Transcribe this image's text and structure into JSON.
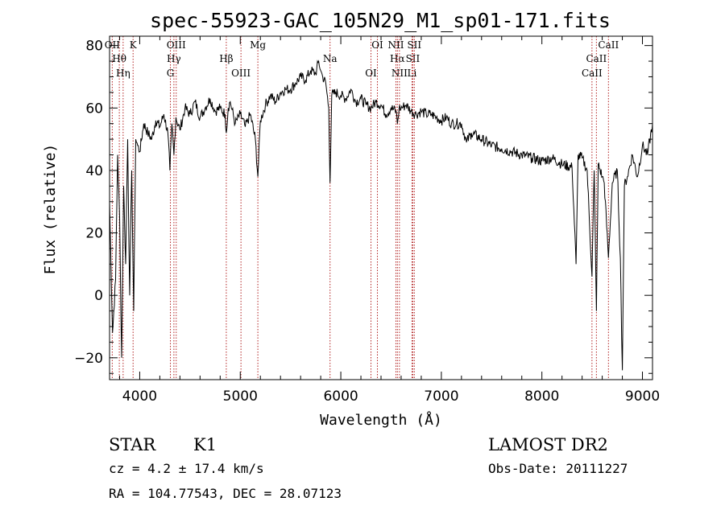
{
  "chart_data": {
    "type": "line",
    "title": "spec-55923-GAC_105N29_M1_sp01-171.fits",
    "xlabel": "Wavelength (Å)",
    "ylabel": "Flux (relative)",
    "xlim": [
      3700,
      9100
    ],
    "ylim": [
      -27,
      83
    ],
    "xticks": [
      "4000",
      "5000",
      "6000",
      "7000",
      "8000",
      "9000"
    ],
    "yticks": [
      "−20",
      "0",
      "20",
      "40",
      "60",
      "80"
    ],
    "grid": false,
    "series": [
      {
        "x": [
          3700,
          3730,
          3760,
          3780,
          3800,
          3820,
          3840,
          3860,
          3880,
          3900,
          3920,
          3940,
          3960,
          3980,
          4000,
          4040,
          4080,
          4120,
          4160,
          4200,
          4240,
          4280,
          4300,
          4320,
          4340,
          4360,
          4400,
          4450,
          4500,
          4550,
          4600,
          4650,
          4700,
          4750,
          4800,
          4850,
          4861,
          4880,
          4900,
          4950,
          5000,
          5050,
          5100,
          5150,
          5175,
          5200,
          5250,
          5300,
          5350,
          5400,
          5450,
          5500,
          5550,
          5600,
          5650,
          5700,
          5750,
          5780,
          5800,
          5820,
          5850,
          5880,
          5893,
          5910,
          5950,
          6000,
          6050,
          6100,
          6150,
          6200,
          6250,
          6300,
          6350,
          6400,
          6450,
          6500,
          6550,
          6563,
          6580,
          6600,
          6650,
          6700,
          6750,
          6800,
          6850,
          6900,
          6950,
          7000,
          7050,
          7100,
          7150,
          7200,
          7250,
          7300,
          7400,
          7500,
          7600,
          7700,
          7800,
          7900,
          8000,
          8100,
          8200,
          8300,
          8340,
          8360,
          8400,
          8450,
          8498,
          8520,
          8542,
          8560,
          8600,
          8620,
          8662,
          8700,
          8750,
          8780,
          8800,
          8820,
          8850,
          8900,
          8950,
          9000,
          9050,
          9100
        ],
        "y": [
          30,
          -12,
          5,
          45,
          25,
          -20,
          35,
          10,
          50,
          0,
          40,
          -5,
          50,
          48,
          46,
          55,
          52,
          50,
          56,
          54,
          58,
          52,
          40,
          55,
          45,
          57,
          53,
          60,
          58,
          62,
          57,
          60,
          63,
          59,
          60,
          58,
          52,
          60,
          62,
          55,
          58,
          54,
          58,
          50,
          38,
          56,
          61,
          64,
          62,
          65,
          66,
          66,
          68,
          70,
          69,
          72,
          71,
          75,
          72,
          70,
          68,
          60,
          36,
          64,
          65,
          64,
          63,
          66,
          62,
          63,
          61,
          60,
          62,
          61,
          58,
          60,
          59,
          55,
          60,
          60,
          61,
          59,
          58,
          59,
          58,
          58,
          57,
          56,
          57,
          55,
          55,
          55,
          49,
          52,
          50,
          48,
          47,
          46,
          45,
          44,
          43,
          44,
          42,
          41,
          10,
          45,
          44,
          40,
          6,
          40,
          -5,
          42,
          38,
          36,
          12,
          36,
          40,
          12,
          -24,
          35,
          38,
          45,
          38,
          48,
          45,
          55
        ]
      }
    ],
    "line_markers": [
      {
        "label": "OII",
        "x": 3727
      },
      {
        "label": "Hθ",
        "x": 3797
      },
      {
        "label": "Hη",
        "x": 3835
      },
      {
        "label": "K",
        "x": 3934
      },
      {
        "label": "Hγ",
        "x": 4340
      },
      {
        "label": "G",
        "x": 4305
      },
      {
        "label": "OIII",
        "x": 4363
      },
      {
        "label": "Hβ",
        "x": 4861
      },
      {
        "label": "OIII",
        "x": 5007
      },
      {
        "label": "Mg",
        "x": 5175
      },
      {
        "label": "Na",
        "x": 5893
      },
      {
        "label": "OI",
        "x": 6300
      },
      {
        "label": "OI",
        "x": 6364
      },
      {
        "label": "Hα",
        "x": 6563
      },
      {
        "label": "NII",
        "x": 6583
      },
      {
        "label": "NII",
        "x": 6548
      },
      {
        "label": "SII",
        "x": 6716
      },
      {
        "label": "Li",
        "x": 6708
      },
      {
        "label": "SII",
        "x": 6731
      },
      {
        "label": "CaII",
        "x": 8542
      },
      {
        "label": "CaII",
        "x": 8498
      },
      {
        "label": "CaII",
        "x": 8662
      }
    ]
  },
  "info": {
    "object_class": "STAR",
    "subclass": "K1",
    "survey": "LAMOST DR2",
    "redshift": "cz = 4.2 ± 17.4 km/s",
    "obs_date": "Obs-Date: 20111227",
    "coords": "RA = 104.77543, DEC =  28.07123"
  },
  "colors": {
    "spectrum": "#000000",
    "marker": "#b22222",
    "axis": "#000000"
  }
}
